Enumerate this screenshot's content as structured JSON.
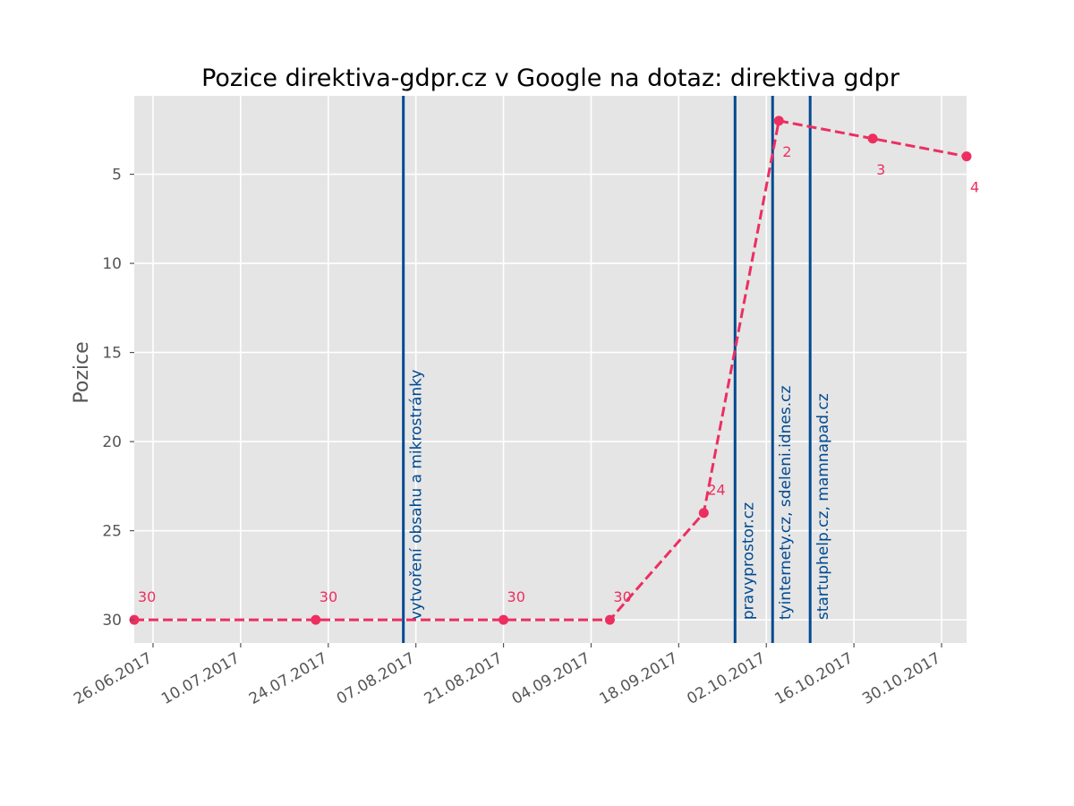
{
  "chart_data": {
    "type": "line",
    "title": "Pozice direktiva-gdpr.cz v Google na dotaz: direktiva gdpr",
    "xlabel": "",
    "ylabel": "Pozice",
    "x_type": "date",
    "xlim": [
      "2017-06-23",
      "2017-11-03"
    ],
    "ylim": [
      31.3,
      0.6
    ],
    "y_inverted": true,
    "yticks": [
      5,
      10,
      15,
      20,
      25,
      30
    ],
    "xticks": [
      "2017-06-26",
      "2017-07-10",
      "2017-07-24",
      "2017-08-07",
      "2017-08-21",
      "2017-09-04",
      "2017-09-18",
      "2017-10-02",
      "2017-10-16",
      "2017-10-30"
    ],
    "xtick_labels": [
      "26.06.2017",
      "10.07.2017",
      "24.07.2017",
      "07.08.2017",
      "21.08.2017",
      "04.09.2017",
      "18.09.2017",
      "02.10.2017",
      "16.10.2017",
      "30.10.2017"
    ],
    "grid": true,
    "series": [
      {
        "x": [
          "2017-06-23",
          "2017-07-22",
          "2017-08-21",
          "2017-09-07",
          "2017-09-22",
          "2017-10-04",
          "2017-10-19",
          "2017-11-03"
        ],
        "y": [
          30,
          30,
          30,
          30,
          24,
          2,
          3,
          4
        ],
        "labels": [
          "30",
          "30",
          "30",
          "30",
          "24",
          "2",
          "3",
          "4"
        ],
        "color": "#ec2f60",
        "linestyle": "dashed",
        "marker": "circle"
      }
    ],
    "annotations": [
      {
        "x": "2017-08-05",
        "label": "vytvoření obsahu a mikrostránky",
        "color": "#004a91"
      },
      {
        "x": "2017-09-27",
        "label": "pravyprostor.cz",
        "color": "#004a91"
      },
      {
        "x": "2017-10-03",
        "label": "tyinternety.cz, sdeleni.idnes.cz",
        "color": "#004a91"
      },
      {
        "x": "2017-10-09",
        "label": "startuphelp.cz, mamnapad.cz",
        "color": "#004a91"
      }
    ],
    "colors": {
      "background": "#e5e5e5",
      "grid": "#ffffff",
      "series": "#ec2f60",
      "annotation": "#004a91"
    }
  }
}
